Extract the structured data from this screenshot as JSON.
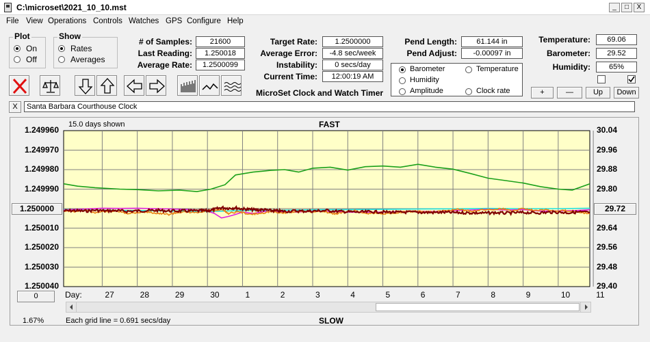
{
  "window": {
    "title": "C:\\microset\\2021_10_10.mst",
    "btn_min": "_",
    "btn_max": "□",
    "btn_close": "X"
  },
  "menu": [
    "File",
    "View",
    "Operations",
    "Controls",
    "Watches",
    "GPS",
    "Configure",
    "Help"
  ],
  "plot_group": {
    "title": "Plot",
    "on": "On",
    "off": "Off",
    "selected": "On"
  },
  "show_group": {
    "title": "Show",
    "rates": "Rates",
    "averages": "Averages",
    "selected": "Rates"
  },
  "stats": {
    "samples_label": "# of Samples:",
    "samples": "21600",
    "last_label": "Last Reading:",
    "last": "1.250018",
    "avgrate_label": "Average Rate:",
    "avgrate": "1.2500099"
  },
  "rates": {
    "target_label": "Target Rate:",
    "target": "1.2500000",
    "avgerr_label": "Average Error:",
    "avgerr": "-4.8 sec/week",
    "instab_label": "Instability:",
    "instab": "0 secs/day",
    "curtime_label": "Current Time:",
    "curtime": "12:00:19 AM"
  },
  "heading": "MicroSet Clock and Watch Timer",
  "pend": {
    "length_label": "Pend Length:",
    "length": "61.144 in",
    "adjust_label": "Pend Adjust:",
    "adjust": "-0.00097 in"
  },
  "sensors": {
    "temp_label": "Temperature:",
    "temp": "69.06",
    "baro_label": "Barometer:",
    "baro": "29.52",
    "hum_label": "Humidity:",
    "hum": "65%"
  },
  "aux_select": {
    "options": [
      {
        "label": "Barometer",
        "color": "#e88010",
        "selected": true
      },
      {
        "label": "Temperature",
        "color": "#1aa01a",
        "selected": false
      },
      {
        "label": "Humidity",
        "color": "#e020e0",
        "selected": false
      },
      {
        "label": "Amplitude",
        "color": "#20d0d0",
        "selected": false
      },
      {
        "label": "Clock rate",
        "color": "#801010",
        "selected": false
      }
    ]
  },
  "scale_buttons": {
    "plus": "+",
    "minus": "—",
    "up": "Up",
    "down": "Down"
  },
  "checkboxes": {
    "left_checked": false,
    "right_checked": true
  },
  "toolbar_icons": [
    "clear-icon",
    "balance-icon",
    "arrow-down-icon",
    "arrow-up-icon",
    "arrow-left-icon",
    "arrow-right-icon",
    "bar-graph-icon",
    "line-graph-icon",
    "wave-graph-icon"
  ],
  "clock_name": {
    "close": "X",
    "value": "Santa Barbara Courthouse Clock"
  },
  "plot": {
    "days_shown": "15.0 days shown",
    "top_label": "FAST",
    "bottom_label": "SLOW",
    "grid_note": "Each grid line = 0.691 secs/day",
    "percent": "1.67%",
    "left_center_btn": "1.250000",
    "right_center_btn": "29.72",
    "bottom_left_btn": "0",
    "day_prefix": "Day:",
    "colors": {
      "bg": "#ffffc8",
      "grid": "#808080",
      "baro": "#e88010",
      "temp": "#1aa01a",
      "hum": "#e020e0",
      "amp": "#20e0e0",
      "rate": "#800000"
    }
  },
  "chart_data": {
    "type": "line",
    "x_ticks": [
      "27",
      "28",
      "29",
      "30",
      "1",
      "2",
      "3",
      "4",
      "5",
      "6",
      "7",
      "8",
      "9",
      "10",
      "11"
    ],
    "y_left_ticks": [
      "1.249960",
      "1.249970",
      "1.249980",
      "1.249990",
      "1.250000",
      "1.250010",
      "1.250020",
      "1.250030",
      "1.250040"
    ],
    "y_right_ticks": [
      "30.04",
      "29.96",
      "29.88",
      "29.80",
      "29.72",
      "29.64",
      "29.56",
      "29.48",
      "29.40"
    ],
    "ylim_left": [
      1.25004,
      1.24996
    ],
    "ylim_right": [
      29.4,
      30.04
    ],
    "x_range": [
      25.9,
      40.9
    ],
    "series": [
      {
        "name": "Temperature",
        "key": "temp",
        "x": [
          25.9,
          26.3,
          26.8,
          27.5,
          28.0,
          28.6,
          29.2,
          29.7,
          30.1,
          30.5,
          30.8,
          31.3,
          31.8,
          32.2,
          32.6,
          33.0,
          33.5,
          34.0,
          34.5,
          35.0,
          35.5,
          36.0,
          36.5,
          37.0,
          37.5,
          38.0,
          38.5,
          39.0,
          39.5,
          40.0,
          40.4,
          40.9
        ],
        "y": [
          29.822,
          29.812,
          29.806,
          29.8,
          29.798,
          29.793,
          29.796,
          29.79,
          29.8,
          29.818,
          29.858,
          29.87,
          29.877,
          29.88,
          29.87,
          29.886,
          29.89,
          29.878,
          29.892,
          29.895,
          29.89,
          29.902,
          29.89,
          29.882,
          29.864,
          29.845,
          29.835,
          29.825,
          29.81,
          29.8,
          29.796,
          29.822
        ]
      },
      {
        "name": "Amplitude",
        "key": "amp",
        "x": [
          25.9,
          27.0,
          28.0,
          29.0,
          30.0,
          31.0,
          32.0,
          33.0,
          34.0,
          35.0,
          36.0,
          37.0,
          38.0,
          39.0,
          40.0,
          40.9
        ],
        "y": [
          1.2500005,
          1.2500008,
          1.250001,
          1.2500012,
          1.2500015,
          1.250001,
          1.2500008,
          1.2500006,
          1.2500005,
          1.2500004,
          1.2500002,
          1.2500001,
          1.2499999,
          1.25,
          1.25,
          1.2499998
        ]
      },
      {
        "name": "Humidity",
        "key": "hum",
        "x": [
          25.9,
          26.5,
          27.0,
          27.5,
          28.0,
          28.5,
          29.0,
          29.5,
          30.0,
          30.2,
          30.4,
          30.6,
          30.8,
          31.0,
          31.3,
          31.6,
          32.0,
          32.5,
          33.0,
          33.5,
          34.0,
          34.5,
          35.0,
          35.5,
          36.0,
          36.5,
          37.0,
          37.5,
          38.0,
          38.5,
          39.0,
          39.5,
          40.0,
          40.5,
          40.9
        ],
        "y": [
          1.2500007,
          1.2500002,
          1.2499998,
          1.2499999,
          1.2499998,
          1.25,
          1.2500002,
          1.2500005,
          1.2500012,
          1.2500025,
          1.2500048,
          1.250004,
          1.250003,
          1.2500018,
          1.2500025,
          1.2500015,
          1.2500015,
          1.2500018,
          1.2500014,
          1.2500014,
          1.2500018,
          1.2500019,
          1.2500018,
          1.2500015,
          1.2500014,
          1.2500015,
          1.250001,
          1.2500007,
          1.2500003,
          1.2500007,
          1.2500005,
          1.2500013,
          1.2500012,
          1.250001,
          1.2500006
        ]
      },
      {
        "name": "Barometer",
        "key": "baro",
        "x": [
          25.9,
          26.2,
          26.5,
          26.8,
          27.1,
          27.4,
          27.7,
          28.0,
          28.3,
          28.6,
          28.9,
          29.2,
          29.5,
          29.8,
          30.0,
          30.2,
          30.4,
          30.6,
          30.9,
          31.2,
          31.5,
          31.8,
          32.1,
          32.4,
          32.7,
          33.0,
          33.3,
          33.6,
          33.9,
          34.2,
          34.5,
          34.8,
          35.1,
          35.4,
          35.7,
          36.0,
          36.3,
          36.6,
          36.9,
          37.2,
          37.5,
          37.8,
          38.1,
          38.4,
          38.7,
          39.0,
          39.3,
          39.6,
          39.9,
          40.2,
          40.5,
          40.9
        ],
        "y": [
          1.250001,
          1.2500015,
          1.2500008,
          1.250002,
          1.2500014,
          1.2500012,
          1.2500025,
          1.250002,
          1.2500017,
          1.2500025,
          1.250003,
          1.2500018,
          1.250002,
          1.2500021,
          1.250001,
          1.2500012,
          1.2500002,
          1.2500025,
          1.2500015,
          1.250003,
          1.2500025,
          1.2500015,
          1.2500022,
          1.2500018,
          1.2500014,
          1.2500018,
          1.2500012,
          1.2500028,
          1.2500018,
          1.250001,
          1.2500025,
          1.2500022,
          1.2500026,
          1.250002,
          1.2500016,
          1.2500014,
          1.2500018,
          1.2500015,
          1.2500008,
          1.2500004,
          1.2500014,
          1.2500006,
          1.2500004,
          1.25,
          1.2500012,
          1.2499998,
          1.2500008,
          1.2500004,
          1.2500014,
          1.250001,
          1.2500014,
          1.2500027
        ]
      },
      {
        "name": "Clock rate",
        "key": "rate",
        "x": [
          25.9,
          26.2,
          26.5,
          26.8,
          27.1,
          27.4,
          27.7,
          28.0,
          28.3,
          28.6,
          28.9,
          29.2,
          29.5,
          29.8,
          30.0,
          30.2,
          30.4,
          30.6,
          30.8,
          31.0,
          31.2,
          31.4,
          31.6,
          31.8,
          32.0,
          32.2,
          32.5,
          32.8,
          33.1,
          33.4,
          33.7,
          34.0,
          34.3,
          34.6,
          34.9,
          35.2,
          35.5,
          35.8,
          36.1,
          36.4,
          36.7,
          37.0,
          37.3,
          37.6,
          37.9,
          38.2,
          38.5,
          38.8,
          39.1,
          39.4,
          39.7,
          40.0,
          40.3,
          40.6,
          40.9
        ],
        "y": [
          1.2500012,
          1.250001,
          1.2500013,
          1.2500008,
          1.2500012,
          1.250001,
          1.2500014,
          1.2500012,
          1.250001,
          1.2500009,
          1.2500012,
          1.2500012,
          1.2500012,
          1.2500011,
          1.2500011,
          1.2500004,
          1.2499995,
          1.2499998,
          1.2499996,
          1.2500002,
          1.2500004,
          1.2500007,
          1.2500006,
          1.250001,
          1.2500012,
          1.2500014,
          1.2500012,
          1.2500013,
          1.2500012,
          1.250001,
          1.2500014,
          1.2500016,
          1.2500018,
          1.2500016,
          1.2500017,
          1.2500018,
          1.2500019,
          1.2500018,
          1.2500019,
          1.250002,
          1.2500019,
          1.250002,
          1.2500021,
          1.2500022,
          1.2500023,
          1.2500021,
          1.2500023,
          1.2500021,
          1.250002,
          1.2500022,
          1.2500019,
          1.2500018,
          1.2500021,
          1.2500017,
          1.250002
        ]
      }
    ]
  }
}
